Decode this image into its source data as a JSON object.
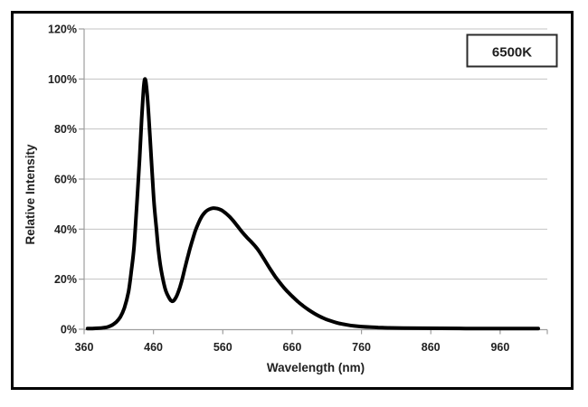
{
  "window": {
    "background": "#ffffff"
  },
  "colors": {
    "curve": "#000000",
    "gridline": "#c3c3c3",
    "axis": "#9e9e9e",
    "text": "#1f1f1f",
    "legend_border": "#2b2b2b",
    "figure_border": "#000000"
  },
  "chart_data": {
    "type": "line",
    "title": "",
    "xlabel": "Wavelength (nm)",
    "ylabel": "Relative Intensity",
    "legend_position": "top-right",
    "grid": "horizontal",
    "xlim": [
      360,
      1028
    ],
    "ylim": [
      0,
      120
    ],
    "x_ticks": [
      360,
      460,
      560,
      660,
      760,
      860,
      960
    ],
    "x_tick_labels": [
      "360",
      "460",
      "560",
      "660",
      "760",
      "860",
      "960"
    ],
    "y_ticks": [
      0,
      20,
      40,
      60,
      80,
      100,
      120
    ],
    "y_tick_labels": [
      "0%",
      "20%",
      "40%",
      "60%",
      "80%",
      "100%",
      "120%"
    ],
    "series": [
      {
        "name": "6500K",
        "color": "#000000",
        "points": [
          [
            365,
            0.25
          ],
          [
            372,
            0.3
          ],
          [
            380,
            0.4
          ],
          [
            388,
            0.6
          ],
          [
            394,
            0.9
          ],
          [
            400,
            1.6
          ],
          [
            406,
            2.8
          ],
          [
            412,
            4.8
          ],
          [
            418,
            8.5
          ],
          [
            424,
            15
          ],
          [
            428,
            23
          ],
          [
            432,
            33
          ],
          [
            436,
            50
          ],
          [
            440,
            68
          ],
          [
            443,
            84
          ],
          [
            446,
            97
          ],
          [
            448,
            100
          ],
          [
            450,
            96.5
          ],
          [
            452,
            90
          ],
          [
            455,
            77
          ],
          [
            458,
            63
          ],
          [
            461,
            50
          ],
          [
            464,
            41
          ],
          [
            467,
            32
          ],
          [
            470,
            25.5
          ],
          [
            474,
            19.5
          ],
          [
            478,
            15.2
          ],
          [
            482,
            12.8
          ],
          [
            485,
            11.5
          ],
          [
            488,
            11.2
          ],
          [
            492,
            12.5
          ],
          [
            496,
            15
          ],
          [
            500,
            18.5
          ],
          [
            505,
            24
          ],
          [
            510,
            29.5
          ],
          [
            515,
            34.5
          ],
          [
            520,
            39
          ],
          [
            525,
            42.5
          ],
          [
            530,
            45.2
          ],
          [
            535,
            46.9
          ],
          [
            540,
            47.9
          ],
          [
            546,
            48.4
          ],
          [
            552,
            48.2
          ],
          [
            558,
            47.6
          ],
          [
            564,
            46.4
          ],
          [
            570,
            44.9
          ],
          [
            576,
            43
          ],
          [
            582,
            40.9
          ],
          [
            588,
            38.8
          ],
          [
            594,
            36.9
          ],
          [
            600,
            35.2
          ],
          [
            606,
            33.4
          ],
          [
            612,
            31.3
          ],
          [
            620,
            27.8
          ],
          [
            628,
            24.2
          ],
          [
            636,
            20.9
          ],
          [
            644,
            18
          ],
          [
            652,
            15.4
          ],
          [
            660,
            13.2
          ],
          [
            668,
            11.1
          ],
          [
            676,
            9.3
          ],
          [
            684,
            7.7
          ],
          [
            692,
            6.3
          ],
          [
            700,
            5.1
          ],
          [
            708,
            4.1
          ],
          [
            716,
            3.3
          ],
          [
            724,
            2.6
          ],
          [
            732,
            2.1
          ],
          [
            740,
            1.7
          ],
          [
            750,
            1.3
          ],
          [
            760,
            1.05
          ],
          [
            772,
            0.85
          ],
          [
            784,
            0.7
          ],
          [
            800,
            0.55
          ],
          [
            820,
            0.45
          ],
          [
            845,
            0.4
          ],
          [
            875,
            0.35
          ],
          [
            910,
            0.3
          ],
          [
            950,
            0.3
          ],
          [
            990,
            0.3
          ],
          [
            1015,
            0.3
          ]
        ]
      }
    ]
  }
}
